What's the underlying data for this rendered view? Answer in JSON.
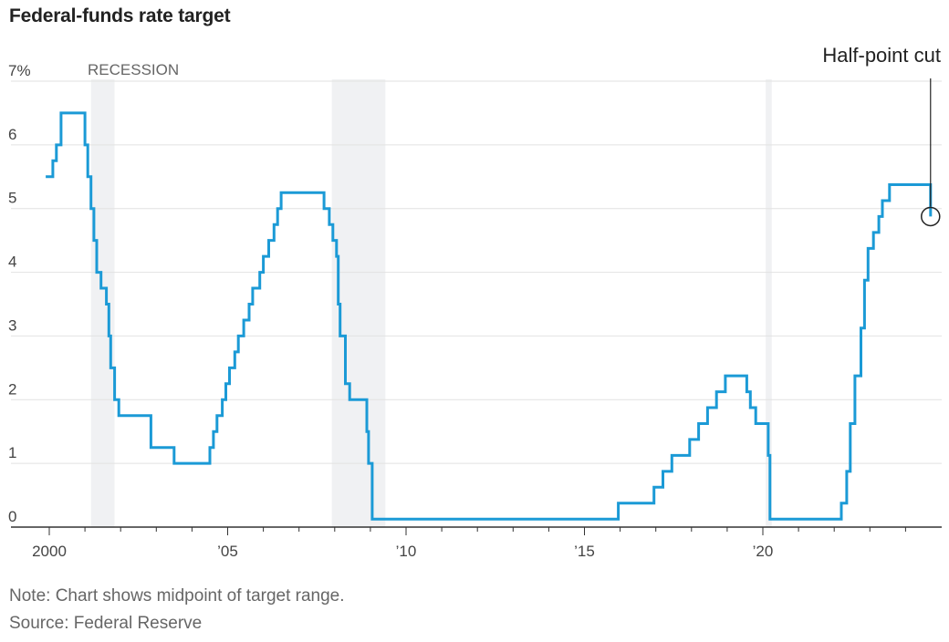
{
  "title": "Federal-funds rate target",
  "note": "Note: Chart shows midpoint of target range.",
  "source": "Source: Federal Reserve",
  "chart_data": {
    "type": "line",
    "step": true,
    "ylim": [
      0,
      7
    ],
    "xlim": [
      1999.8,
      2024.9
    ],
    "yticks": [
      {
        "value": 0,
        "label": "0"
      },
      {
        "value": 1,
        "label": "1"
      },
      {
        "value": 2,
        "label": "2"
      },
      {
        "value": 3,
        "label": "3"
      },
      {
        "value": 4,
        "label": "4"
      },
      {
        "value": 5,
        "label": "5"
      },
      {
        "value": 6,
        "label": "6"
      },
      {
        "value": 7,
        "label": "7%"
      }
    ],
    "xticks": [
      {
        "value": 2000,
        "label": "2000"
      },
      {
        "value": 2005,
        "label": "’05"
      },
      {
        "value": 2010,
        "label": "’10"
      },
      {
        "value": 2015,
        "label": "’15"
      },
      {
        "value": 2020,
        "label": "’20"
      }
    ],
    "recession_label": "RECESSION",
    "recessions": [
      [
        2001.17,
        2001.83
      ],
      [
        2007.92,
        2009.42
      ],
      [
        2020.08,
        2020.25
      ]
    ],
    "annotation": {
      "label": "Half-point cut",
      "x": 2024.7,
      "y": 4.875
    },
    "colors": {
      "line": "#1b9ad6",
      "recession": "#f0f1f3",
      "grid": "#e2e2e2"
    },
    "series": [
      {
        "values": [
          [
            1999.9,
            5.5
          ],
          [
            2000.1,
            5.75
          ],
          [
            2000.2,
            6.0
          ],
          [
            2000.33,
            6.5
          ],
          [
            2000.95,
            6.5
          ],
          [
            2001.0,
            6.0
          ],
          [
            2001.08,
            5.5
          ],
          [
            2001.17,
            5.0
          ],
          [
            2001.25,
            4.5
          ],
          [
            2001.33,
            4.0
          ],
          [
            2001.45,
            3.75
          ],
          [
            2001.6,
            3.5
          ],
          [
            2001.67,
            3.0
          ],
          [
            2001.72,
            2.5
          ],
          [
            2001.83,
            2.0
          ],
          [
            2001.95,
            1.75
          ],
          [
            2002.85,
            1.25
          ],
          [
            2003.5,
            1.0
          ],
          [
            2004.5,
            1.25
          ],
          [
            2004.6,
            1.5
          ],
          [
            2004.7,
            1.75
          ],
          [
            2004.85,
            2.0
          ],
          [
            2004.95,
            2.25
          ],
          [
            2005.05,
            2.5
          ],
          [
            2005.2,
            2.75
          ],
          [
            2005.3,
            3.0
          ],
          [
            2005.45,
            3.25
          ],
          [
            2005.6,
            3.5
          ],
          [
            2005.7,
            3.75
          ],
          [
            2005.9,
            4.0
          ],
          [
            2006.0,
            4.25
          ],
          [
            2006.15,
            4.5
          ],
          [
            2006.3,
            4.75
          ],
          [
            2006.4,
            5.0
          ],
          [
            2006.5,
            5.25
          ],
          [
            2007.7,
            5.0
          ],
          [
            2007.85,
            4.75
          ],
          [
            2007.95,
            4.5
          ],
          [
            2008.05,
            4.25
          ],
          [
            2008.1,
            3.5
          ],
          [
            2008.15,
            3.0
          ],
          [
            2008.3,
            2.25
          ],
          [
            2008.42,
            2.0
          ],
          [
            2008.9,
            1.5
          ],
          [
            2008.95,
            1.0
          ],
          [
            2009.05,
            0.125
          ],
          [
            2015.95,
            0.375
          ],
          [
            2016.95,
            0.625
          ],
          [
            2017.2,
            0.875
          ],
          [
            2017.45,
            1.125
          ],
          [
            2017.95,
            1.375
          ],
          [
            2018.2,
            1.625
          ],
          [
            2018.45,
            1.875
          ],
          [
            2018.7,
            2.125
          ],
          [
            2018.95,
            2.375
          ],
          [
            2019.55,
            2.125
          ],
          [
            2019.65,
            1.875
          ],
          [
            2019.8,
            1.625
          ],
          [
            2020.15,
            1.125
          ],
          [
            2020.2,
            0.125
          ],
          [
            2022.2,
            0.375
          ],
          [
            2022.35,
            0.875
          ],
          [
            2022.45,
            1.625
          ],
          [
            2022.58,
            2.375
          ],
          [
            2022.75,
            3.125
          ],
          [
            2022.85,
            3.875
          ],
          [
            2022.95,
            4.375
          ],
          [
            2023.1,
            4.625
          ],
          [
            2023.25,
            4.875
          ],
          [
            2023.35,
            5.125
          ],
          [
            2023.55,
            5.375
          ],
          [
            2024.55,
            5.375
          ],
          [
            2024.7,
            4.875
          ]
        ]
      }
    ]
  }
}
